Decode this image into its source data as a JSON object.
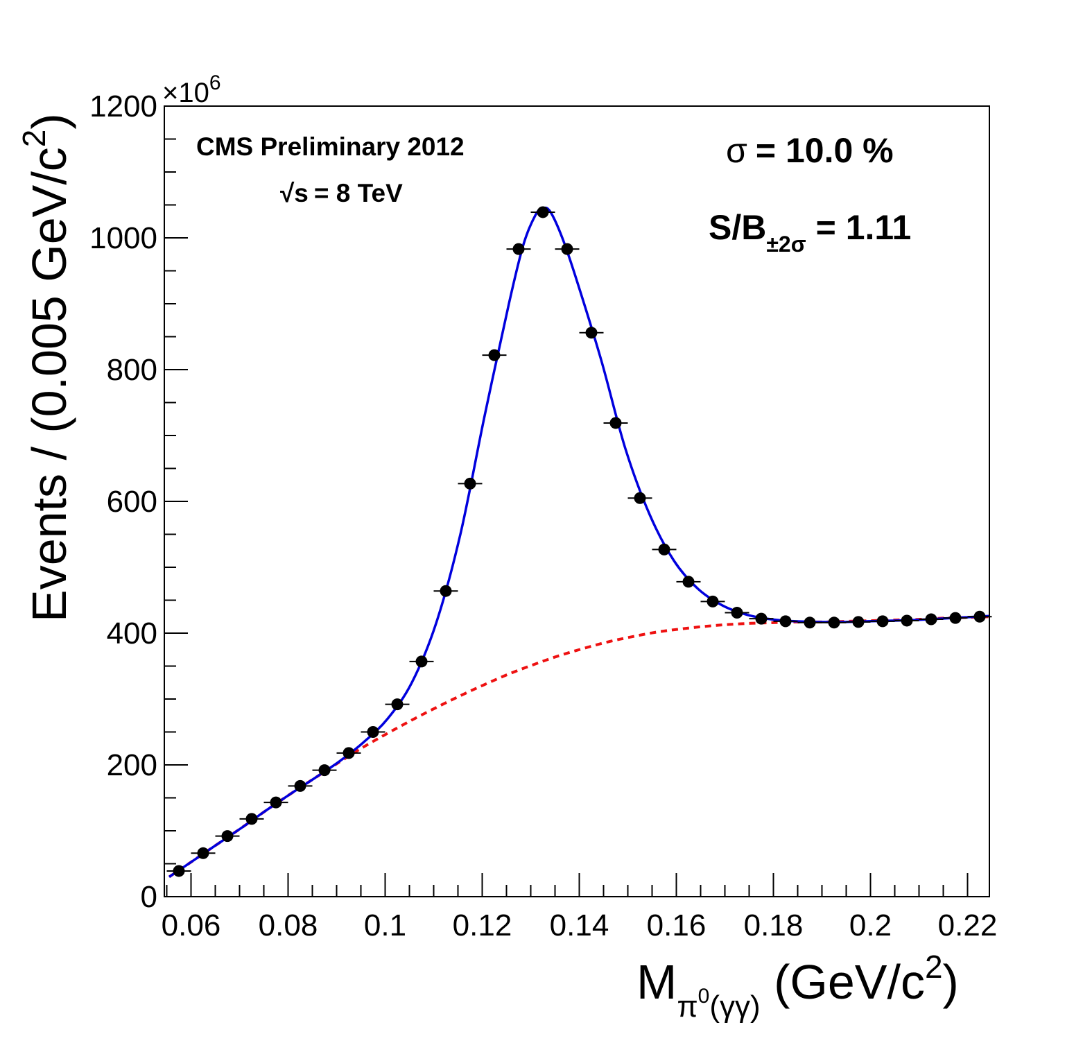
{
  "chart_data": {
    "type": "scatter",
    "title": "",
    "header": {
      "experiment": "CMS Preliminary 2012",
      "energy_symbol": "√s",
      "energy_text": "= 8 TeV"
    },
    "stats": {
      "sigma_symbol": "σ",
      "sigma_text": "= 10.0 %",
      "sb_main": "S/B",
      "sb_sub": "±2σ",
      "sb_value": "= 1.11"
    },
    "xlabel": {
      "main": "M",
      "sub_pi": "π",
      "sub_sup": "0",
      "sub_paren": "(γγ)",
      "unit_open": " (GeV/c",
      "unit_sup": "2",
      "unit_close": ")"
    },
    "ylabel": {
      "main": "Events / (0.005 GeV/c",
      "sup": "2",
      "close": ")"
    },
    "y_exponent": {
      "prefix": "×10",
      "power": "6"
    },
    "xlim": [
      0.0545,
      0.2245
    ],
    "ylim": [
      0,
      1200
    ],
    "x_ticks": [
      "0.06",
      "0.08",
      "0.1",
      "0.12",
      "0.14",
      "0.16",
      "0.18",
      "0.2",
      "0.22"
    ],
    "y_ticks": [
      "0",
      "200",
      "400",
      "600",
      "800",
      "1000",
      "1200"
    ],
    "bin_width": 0.005,
    "grid": false,
    "colors": {
      "data": "#000000",
      "fit_total": "#0000dd",
      "fit_background": "#ee1111"
    },
    "series": [
      {
        "type": "points",
        "x": [
          0.0575,
          0.0625,
          0.0675,
          0.0725,
          0.0775,
          0.0825,
          0.0875,
          0.0925,
          0.0975,
          0.1025,
          0.1075,
          0.1125,
          0.1175,
          0.1225,
          0.1275,
          0.1325,
          0.1375,
          0.1425,
          0.1475,
          0.1525,
          0.1575,
          0.1625,
          0.1675,
          0.1725,
          0.1775,
          0.1825,
          0.1875,
          0.1925,
          0.1975,
          0.2025,
          0.2075,
          0.2125,
          0.2175,
          0.2225
        ],
        "y": [
          39,
          66,
          92,
          118,
          143,
          168,
          192,
          218,
          250,
          292,
          357,
          464,
          627,
          822,
          983,
          1039,
          983,
          856,
          719,
          605,
          527,
          478,
          448,
          431,
          422,
          418,
          416,
          416,
          417,
          418,
          419,
          421,
          423,
          425
        ]
      },
      {
        "type": "line",
        "style": "solid",
        "x": [
          0.0555,
          0.0605,
          0.0655,
          0.0705,
          0.0755,
          0.0805,
          0.0855,
          0.0905,
          0.0955,
          0.1005,
          0.1055,
          0.1105,
          0.1155,
          0.1205,
          0.1255,
          0.1285,
          0.131,
          0.1325,
          0.134,
          0.1365,
          0.1395,
          0.1445,
          0.1495,
          0.1545,
          0.1595,
          0.1645,
          0.1695,
          0.1745,
          0.1795,
          0.1845,
          0.1895,
          0.1945,
          0.1995,
          0.2045,
          0.2095,
          0.2145,
          0.2195,
          0.2245
        ],
        "y": [
          30,
          55,
          80,
          105,
          131,
          156,
          180,
          205,
          234,
          270,
          325,
          415,
          550,
          730,
          900,
          990,
          1035,
          1045,
          1040,
          1000,
          935,
          815,
          680,
          580,
          510,
          467,
          442,
          428,
          421,
          418,
          417,
          417,
          418,
          419,
          420,
          422,
          424,
          426
        ]
      },
      {
        "type": "line",
        "style": "dashed",
        "x": [
          0.0555,
          0.0605,
          0.0655,
          0.0705,
          0.0755,
          0.0805,
          0.0855,
          0.0905,
          0.0955,
          0.1005,
          0.1055,
          0.1105,
          0.1155,
          0.1205,
          0.1255,
          0.1305,
          0.1355,
          0.1405,
          0.1455,
          0.1505,
          0.1555,
          0.1605,
          0.1655,
          0.1705,
          0.1755,
          0.1805,
          0.1855,
          0.1905,
          0.1955,
          0.2005,
          0.2055,
          0.2105,
          0.2155,
          0.2205,
          0.2245
        ],
        "y": [
          30,
          55,
          80,
          105,
          131,
          156,
          180,
          204,
          227,
          248,
          268,
          287,
          305,
          322,
          338,
          352,
          365,
          376,
          386,
          394,
          401,
          406,
          410,
          413,
          415,
          416,
          417,
          417,
          418,
          419,
          420,
          421,
          423,
          424,
          425
        ]
      }
    ]
  }
}
